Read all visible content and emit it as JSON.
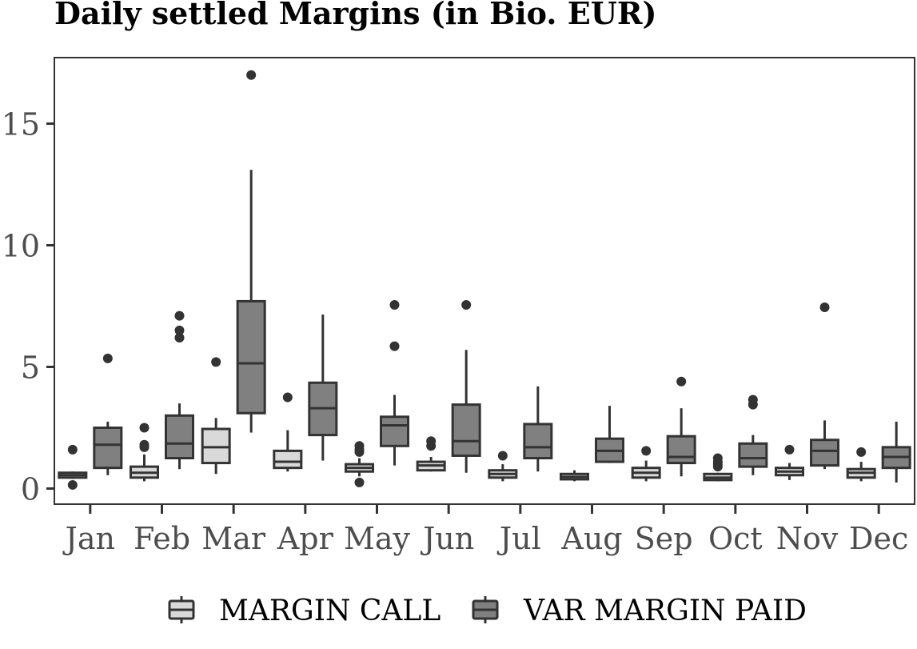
{
  "chart_data": {
    "type": "boxplot",
    "title": "Daily settled Margins (in Bio. EUR)",
    "xlabel": "",
    "ylabel": "",
    "ylim": [
      -0.7,
      18.0
    ],
    "yticks": [
      0,
      5,
      10,
      15
    ],
    "categories": [
      "Jan",
      "Feb",
      "Mar",
      "Apr",
      "May",
      "Jun",
      "Jul",
      "Aug",
      "Sep",
      "Oct",
      "Nov",
      "Dec"
    ],
    "legend_position": "bottom",
    "grid": false,
    "series": [
      {
        "name": "MARGIN CALL",
        "color": "#d9d9d9",
        "boxes": [
          {
            "min": 0.4,
            "q1": 0.45,
            "median": 0.55,
            "q3": 0.65,
            "max": 0.7,
            "outliers": [
              1.6,
              0.15
            ]
          },
          {
            "min": 0.3,
            "q1": 0.45,
            "median": 0.65,
            "q3": 0.9,
            "max": 1.4,
            "outliers": [
              1.7,
              1.8,
              2.5
            ]
          },
          {
            "min": 0.6,
            "q1": 1.05,
            "median": 1.7,
            "q3": 2.45,
            "max": 2.9,
            "outliers": [
              5.2
            ]
          },
          {
            "min": 0.7,
            "q1": 0.85,
            "median": 1.1,
            "q3": 1.55,
            "max": 2.4,
            "outliers": [
              3.75
            ]
          },
          {
            "min": 0.5,
            "q1": 0.7,
            "median": 0.85,
            "q3": 1.0,
            "max": 1.25,
            "outliers": [
              1.5,
              1.6,
              1.75,
              0.25
            ]
          },
          {
            "min": 0.7,
            "q1": 0.75,
            "median": 0.95,
            "q3": 1.1,
            "max": 1.3,
            "outliers": [
              1.75,
              1.95
            ]
          },
          {
            "min": 0.3,
            "q1": 0.45,
            "median": 0.6,
            "q3": 0.75,
            "max": 1.0,
            "outliers": [
              1.35
            ]
          },
          {
            "min": 0.3,
            "q1": 0.38,
            "median": 0.48,
            "q3": 0.6,
            "max": 0.75,
            "outliers": []
          },
          {
            "min": 0.3,
            "q1": 0.45,
            "median": 0.65,
            "q3": 0.85,
            "max": 1.15,
            "outliers": [
              1.55
            ]
          },
          {
            "min": 0.3,
            "q1": 0.35,
            "median": 0.45,
            "q3": 0.6,
            "max": 0.65,
            "outliers": [
              0.9,
              1.0,
              1.1,
              1.25
            ]
          },
          {
            "min": 0.35,
            "q1": 0.55,
            "median": 0.7,
            "q3": 0.85,
            "max": 1.05,
            "outliers": [
              1.6
            ]
          },
          {
            "min": 0.3,
            "q1": 0.45,
            "median": 0.65,
            "q3": 0.8,
            "max": 1.1,
            "outliers": [
              1.5
            ]
          }
        ]
      },
      {
        "name": "VAR MARGIN PAID",
        "color": "#808080",
        "boxes": [
          {
            "min": 0.55,
            "q1": 0.85,
            "median": 1.8,
            "q3": 2.5,
            "max": 2.75,
            "outliers": [
              5.35
            ]
          },
          {
            "min": 0.8,
            "q1": 1.25,
            "median": 1.85,
            "q3": 3.0,
            "max": 3.5,
            "outliers": [
              6.2,
              6.5,
              7.1
            ]
          },
          {
            "min": 2.3,
            "q1": 3.1,
            "median": 5.15,
            "q3": 7.7,
            "max": 13.1,
            "outliers": [
              17.0
            ]
          },
          {
            "min": 1.15,
            "q1": 2.2,
            "median": 3.3,
            "q3": 4.35,
            "max": 7.15,
            "outliers": []
          },
          {
            "min": 0.95,
            "q1": 1.75,
            "median": 2.6,
            "q3": 2.95,
            "max": 3.85,
            "outliers": [
              5.85,
              7.55
            ]
          },
          {
            "min": 0.65,
            "q1": 1.35,
            "median": 1.95,
            "q3": 3.45,
            "max": 5.7,
            "outliers": [
              7.55
            ]
          },
          {
            "min": 0.7,
            "q1": 1.25,
            "median": 1.7,
            "q3": 2.65,
            "max": 4.2,
            "outliers": []
          },
          {
            "min": 1.05,
            "q1": 1.1,
            "median": 1.55,
            "q3": 2.05,
            "max": 3.4,
            "outliers": []
          },
          {
            "min": 0.5,
            "q1": 1.05,
            "median": 1.3,
            "q3": 2.15,
            "max": 3.3,
            "outliers": [
              4.4
            ]
          },
          {
            "min": 0.55,
            "q1": 0.9,
            "median": 1.25,
            "q3": 1.85,
            "max": 2.2,
            "outliers": [
              3.45,
              3.65
            ]
          },
          {
            "min": 0.8,
            "q1": 0.95,
            "median": 1.55,
            "q3": 2.0,
            "max": 2.8,
            "outliers": [
              7.45
            ]
          },
          {
            "min": 0.25,
            "q1": 0.85,
            "median": 1.3,
            "q3": 1.7,
            "max": 2.75,
            "outliers": []
          }
        ]
      }
    ]
  }
}
